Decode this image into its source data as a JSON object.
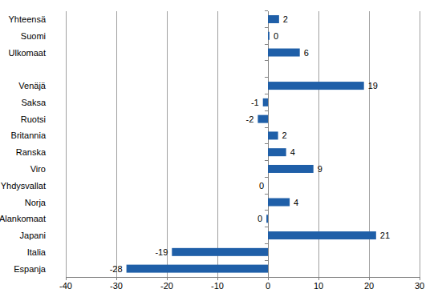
{
  "chart_data": {
    "type": "bar",
    "orientation": "horizontal",
    "categories": [
      "Yhteensä",
      "Suomi",
      "Ulkomaat",
      null,
      "Venäjä",
      "Saksa",
      "Ruotsi",
      "Britannia",
      "Ranska",
      "Viro",
      "Yhdysvallat",
      "Norja",
      "Alankomaat",
      "Japani",
      "Italia",
      "Espanja"
    ],
    "values": [
      2.2,
      0.3,
      6.3,
      null,
      19,
      -1,
      -2,
      2,
      3.6,
      9,
      0,
      4.3,
      -0.3,
      21.4,
      -19,
      -28
    ],
    "value_labels": [
      "2",
      "0",
      "6",
      null,
      "19",
      "-1",
      "-2",
      "2",
      "4",
      "9",
      "0",
      "4",
      "0",
      "21",
      "-19",
      "-28"
    ],
    "color": "#1f5fa8",
    "xlim": [
      -40,
      30
    ],
    "xticks": [
      -40,
      -30,
      -20,
      -10,
      0,
      10,
      20,
      30
    ],
    "grid": true,
    "data_labels": true
  }
}
